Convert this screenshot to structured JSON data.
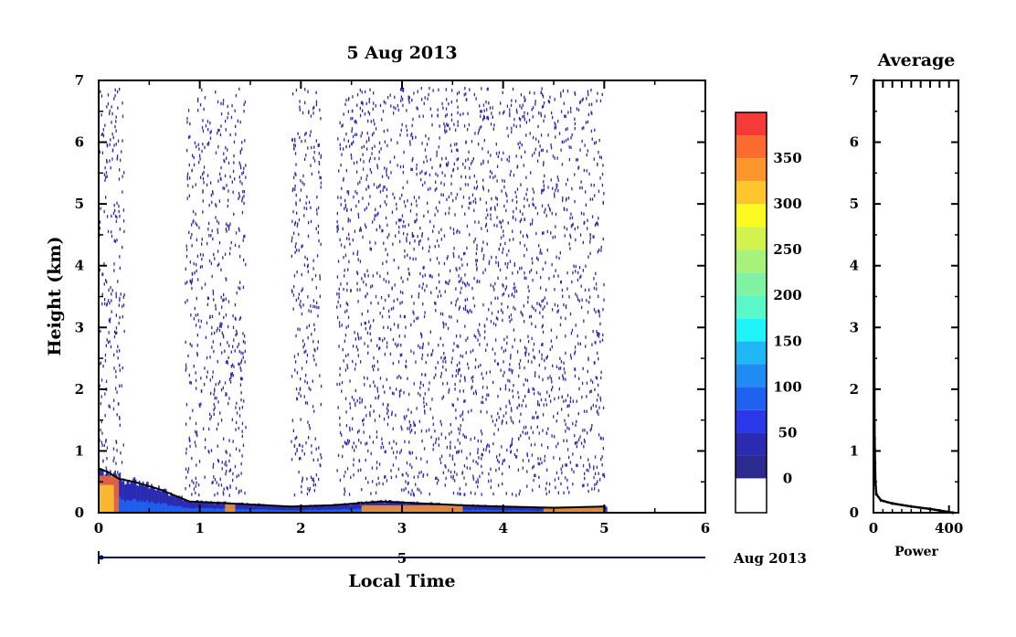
{
  "chart_data": [
    {
      "type": "heatmap",
      "title": "5 Aug 2013",
      "ylabel": "Height (km)",
      "xlabel": "Local Time",
      "xlim": [
        0,
        6
      ],
      "ylim": [
        0,
        7
      ],
      "x_ticks": [
        "0",
        "1",
        "2",
        "3",
        "4",
        "5",
        "6"
      ],
      "y_ticks": [
        "0",
        "1",
        "2",
        "3",
        "4",
        "5",
        "6",
        "7"
      ],
      "date_bar": {
        "day": "5",
        "month_year": "Aug 2013"
      },
      "data_periods_hours": [
        [
          0.0,
          0.25
        ],
        [
          0.85,
          1.45
        ],
        [
          1.9,
          2.2
        ],
        [
          2.35,
          3.6
        ],
        [
          3.6,
          4.05
        ],
        [
          4.05,
          5.0
        ]
      ],
      "sparse_echo_top_km": 6.9,
      "dense_layer_top_km": 0.7,
      "boundary_layer_height_km": [
        {
          "x": 0.0,
          "h": 0.72
        },
        {
          "x": 0.1,
          "h": 0.65
        },
        {
          "x": 0.2,
          "h": 0.55
        },
        {
          "x": 0.35,
          "h": 0.5
        },
        {
          "x": 0.6,
          "h": 0.38
        },
        {
          "x": 0.9,
          "h": 0.18
        },
        {
          "x": 1.3,
          "h": 0.15
        },
        {
          "x": 1.9,
          "h": 0.1
        },
        {
          "x": 2.3,
          "h": 0.12
        },
        {
          "x": 2.8,
          "h": 0.18
        },
        {
          "x": 3.2,
          "h": 0.15
        },
        {
          "x": 3.6,
          "h": 0.12
        },
        {
          "x": 4.0,
          "h": 0.1
        },
        {
          "x": 4.5,
          "h": 0.08
        },
        {
          "x": 5.0,
          "h": 0.1
        }
      ],
      "high_intensity_patches": [
        {
          "x0": 0.0,
          "x1": 0.2,
          "h": 0.6,
          "value": 380
        },
        {
          "x0": 0.0,
          "x1": 0.15,
          "h": 0.45,
          "value": 320
        },
        {
          "x0": 1.25,
          "x1": 1.35,
          "h": 0.15,
          "value": 350
        },
        {
          "x0": 2.6,
          "x1": 3.6,
          "h": 0.12,
          "value": 360
        },
        {
          "x0": 4.4,
          "x1": 5.0,
          "h": 0.1,
          "value": 340
        }
      ]
    },
    {
      "type": "colorbar",
      "ticks": [
        "350",
        "300",
        "250",
        "200",
        "150",
        "100",
        "50",
        "0"
      ],
      "tick_values": [
        350,
        300,
        250,
        200,
        150,
        100,
        50,
        0
      ],
      "levels": [
        {
          "value": 0,
          "color": "#ffffff"
        },
        {
          "value": 12.5,
          "color": "#2c2a8e"
        },
        {
          "value": 37.5,
          "color": "#2a2ab2"
        },
        {
          "value": 62.5,
          "color": "#2a38ea"
        },
        {
          "value": 87.5,
          "color": "#1f62ef"
        },
        {
          "value": 112.5,
          "color": "#1f8bf3"
        },
        {
          "value": 137.5,
          "color": "#1fb7f6"
        },
        {
          "value": 162.5,
          "color": "#1ff4f8"
        },
        {
          "value": 187.5,
          "color": "#5af7c8"
        },
        {
          "value": 212.5,
          "color": "#80f3a2"
        },
        {
          "value": 237.5,
          "color": "#a6f27a"
        },
        {
          "value": 262.5,
          "color": "#d4f24e"
        },
        {
          "value": 287.5,
          "color": "#fafa22"
        },
        {
          "value": 312.5,
          "color": "#fec62c"
        },
        {
          "value": 337.5,
          "color": "#fc962c"
        },
        {
          "value": 362.5,
          "color": "#fb6a2e"
        },
        {
          "value": 387.5,
          "color": "#f63a3a"
        }
      ]
    },
    {
      "type": "line",
      "title": "Average",
      "xlabel": "Power",
      "ylabel": "",
      "xlim": [
        0,
        450
      ],
      "ylim": [
        0,
        7
      ],
      "x_ticks": [
        "0",
        "400"
      ],
      "y_ticks": [
        "0",
        "1",
        "2",
        "3",
        "4",
        "5",
        "6",
        "7"
      ],
      "points": [
        {
          "power": 420,
          "h": 0.0
        },
        {
          "power": 300,
          "h": 0.06
        },
        {
          "power": 200,
          "h": 0.1
        },
        {
          "power": 100,
          "h": 0.15
        },
        {
          "power": 40,
          "h": 0.2
        },
        {
          "power": 15,
          "h": 0.3
        },
        {
          "power": 10,
          "h": 0.5
        },
        {
          "power": 8,
          "h": 0.8
        },
        {
          "power": 6,
          "h": 1.2
        },
        {
          "power": 5,
          "h": 2.0
        },
        {
          "power": 4,
          "h": 3.0
        },
        {
          "power": 4,
          "h": 4.0
        },
        {
          "power": 3,
          "h": 5.0
        },
        {
          "power": 3,
          "h": 6.0
        },
        {
          "power": 3,
          "h": 7.0
        }
      ]
    }
  ]
}
